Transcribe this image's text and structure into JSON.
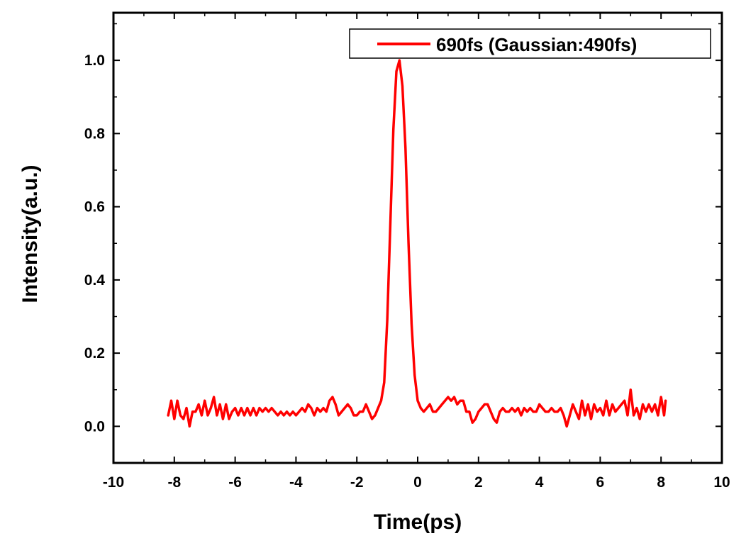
{
  "chart_data": {
    "type": "line",
    "title": "",
    "xlabel": "Time(ps)",
    "ylabel": "Intensity(a.u.)",
    "xlim": [
      -10,
      10
    ],
    "ylim": [
      -0.1,
      1.13
    ],
    "xticks": [
      -10,
      -8,
      -6,
      -4,
      -2,
      0,
      2,
      4,
      6,
      8,
      10
    ],
    "yticks": [
      0.0,
      0.2,
      0.4,
      0.6,
      0.8,
      1.0
    ],
    "xtick_labels": [
      "-10",
      "-8",
      "-6",
      "-4",
      "-2",
      "0",
      "2",
      "4",
      "6",
      "8",
      "10"
    ],
    "ytick_labels": [
      "0.0",
      "0.2",
      "0.4",
      "0.6",
      "0.8",
      "1.0"
    ],
    "grid": false,
    "legend_position": "top-right",
    "series": [
      {
        "name": "690fs (Gaussian:490fs)",
        "color": "#ff0000",
        "x": [
          -8.2,
          -8.1,
          -8.0,
          -7.9,
          -7.8,
          -7.7,
          -7.6,
          -7.5,
          -7.4,
          -7.3,
          -7.2,
          -7.1,
          -7.0,
          -6.9,
          -6.8,
          -6.7,
          -6.6,
          -6.5,
          -6.4,
          -6.3,
          -6.2,
          -6.1,
          -6.0,
          -5.9,
          -5.8,
          -5.7,
          -5.6,
          -5.5,
          -5.4,
          -5.3,
          -5.2,
          -5.1,
          -5.0,
          -4.9,
          -4.8,
          -4.7,
          -4.6,
          -4.5,
          -4.4,
          -4.3,
          -4.2,
          -4.1,
          -4.0,
          -3.9,
          -3.8,
          -3.7,
          -3.6,
          -3.5,
          -3.4,
          -3.3,
          -3.2,
          -3.1,
          -3.0,
          -2.9,
          -2.8,
          -2.7,
          -2.6,
          -2.5,
          -2.4,
          -2.3,
          -2.2,
          -2.1,
          -2.0,
          -1.9,
          -1.8,
          -1.7,
          -1.6,
          -1.5,
          -1.4,
          -1.3,
          -1.2,
          -1.1,
          -1.0,
          -0.9,
          -0.8,
          -0.7,
          -0.6,
          -0.5,
          -0.4,
          -0.3,
          -0.2,
          -0.1,
          0.0,
          0.1,
          0.2,
          0.3,
          0.4,
          0.5,
          0.6,
          0.7,
          0.8,
          0.9,
          1.0,
          1.1,
          1.2,
          1.3,
          1.4,
          1.5,
          1.6,
          1.7,
          1.8,
          1.9,
          2.0,
          2.1,
          2.2,
          2.3,
          2.4,
          2.5,
          2.6,
          2.7,
          2.8,
          2.9,
          3.0,
          3.1,
          3.2,
          3.3,
          3.4,
          3.5,
          3.6,
          3.7,
          3.8,
          3.9,
          4.0,
          4.1,
          4.2,
          4.3,
          4.4,
          4.5,
          4.6,
          4.7,
          4.8,
          4.9,
          5.0,
          5.1,
          5.2,
          5.3,
          5.4,
          5.5,
          5.6,
          5.7,
          5.8,
          5.9,
          6.0,
          6.1,
          6.2,
          6.3,
          6.4,
          6.5,
          6.6,
          6.7,
          6.8,
          6.9,
          7.0,
          7.1,
          7.2,
          7.3,
          7.4,
          7.5,
          7.6,
          7.7,
          7.8,
          7.9,
          8.0,
          8.1,
          8.15
        ],
        "y": [
          0.03,
          0.07,
          0.02,
          0.07,
          0.03,
          0.02,
          0.05,
          0.0,
          0.04,
          0.04,
          0.06,
          0.03,
          0.07,
          0.03,
          0.05,
          0.08,
          0.03,
          0.06,
          0.02,
          0.06,
          0.02,
          0.04,
          0.05,
          0.03,
          0.05,
          0.03,
          0.05,
          0.03,
          0.05,
          0.03,
          0.05,
          0.04,
          0.05,
          0.04,
          0.05,
          0.04,
          0.03,
          0.04,
          0.03,
          0.04,
          0.03,
          0.04,
          0.03,
          0.04,
          0.05,
          0.04,
          0.06,
          0.05,
          0.03,
          0.05,
          0.04,
          0.05,
          0.04,
          0.07,
          0.08,
          0.06,
          0.03,
          0.04,
          0.05,
          0.06,
          0.05,
          0.03,
          0.03,
          0.04,
          0.04,
          0.06,
          0.04,
          0.02,
          0.03,
          0.05,
          0.07,
          0.12,
          0.29,
          0.55,
          0.81,
          0.97,
          1.0,
          0.93,
          0.76,
          0.5,
          0.28,
          0.14,
          0.07,
          0.05,
          0.04,
          0.05,
          0.06,
          0.04,
          0.04,
          0.05,
          0.06,
          0.07,
          0.08,
          0.07,
          0.08,
          0.06,
          0.07,
          0.07,
          0.04,
          0.04,
          0.01,
          0.02,
          0.04,
          0.05,
          0.06,
          0.06,
          0.04,
          0.02,
          0.01,
          0.04,
          0.05,
          0.04,
          0.04,
          0.05,
          0.04,
          0.05,
          0.03,
          0.05,
          0.04,
          0.05,
          0.04,
          0.04,
          0.06,
          0.05,
          0.04,
          0.04,
          0.05,
          0.04,
          0.04,
          0.05,
          0.03,
          0.0,
          0.03,
          0.06,
          0.04,
          0.02,
          0.07,
          0.03,
          0.06,
          0.02,
          0.06,
          0.04,
          0.05,
          0.03,
          0.07,
          0.03,
          0.06,
          0.04,
          0.05,
          0.06,
          0.07,
          0.03,
          0.1,
          0.03,
          0.05,
          0.02,
          0.06,
          0.04,
          0.06,
          0.04,
          0.06,
          0.03,
          0.08,
          0.03,
          0.07
        ]
      }
    ]
  }
}
